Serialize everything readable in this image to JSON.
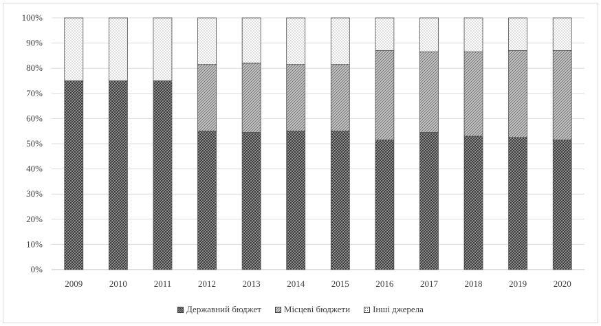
{
  "chart_data": {
    "type": "bar",
    "stacked": true,
    "categories": [
      "2009",
      "2010",
      "2011",
      "2012",
      "2013",
      "2014",
      "2015",
      "2016",
      "2017",
      "2018",
      "2019",
      "2020"
    ],
    "series": [
      {
        "name": "Державний бюджет",
        "values": [
          75,
          75,
          75,
          55,
          54.5,
          55,
          55,
          51.5,
          54.5,
          53,
          52.5,
          51.5
        ]
      },
      {
        "name": "Місцеві бюджети",
        "values": [
          0,
          0,
          0,
          26.5,
          27.5,
          26.5,
          26.5,
          35.5,
          32,
          33.5,
          34.5,
          35.5
        ]
      },
      {
        "name": "Інші джерела",
        "values": [
          25,
          25,
          25,
          18.5,
          18,
          18.5,
          18.5,
          13,
          13.5,
          13.5,
          13,
          13
        ]
      }
    ],
    "y_ticks": [
      "0%",
      "10%",
      "20%",
      "30%",
      "40%",
      "50%",
      "60%",
      "70%",
      "80%",
      "90%",
      "100%"
    ],
    "ylim": [
      0,
      100
    ],
    "grid": true,
    "legend_position": "bottom",
    "title": "",
    "xlabel": "",
    "ylabel": ""
  }
}
